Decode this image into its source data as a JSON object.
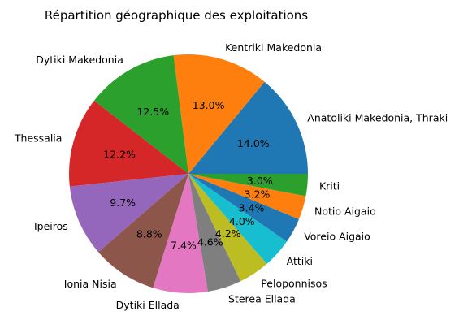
{
  "chart_data": {
    "type": "pie",
    "title": "Répartition géographique des exploitations",
    "start_angle_deg": 0,
    "direction": "counterclockwise",
    "labels": [
      "Anatoliki Makedonia, Thraki",
      "Kentriki Makedonia",
      "Dytiki Makedonia",
      "Thessalia",
      "Ipeiros",
      "Ionia Nisia",
      "Dytiki Ellada",
      "Sterea Ellada",
      "Peloponnisos",
      "Attiki",
      "Voreio Aigaio",
      "Notio Aigaio",
      "Kriti"
    ],
    "values": [
      14.0,
      13.0,
      12.5,
      12.2,
      9.7,
      8.8,
      7.4,
      4.6,
      4.2,
      4.0,
      3.4,
      3.2,
      3.0
    ],
    "value_labels": [
      "14.0%",
      "13.0%",
      "12.5%",
      "12.2%",
      "9.7%",
      "8.8%",
      "7.4%",
      "4.6%",
      "4.2%",
      "4.0%",
      "3.4%",
      "3.2%",
      "3.0%"
    ],
    "colors": [
      "#1f77b4",
      "#ff7f0e",
      "#2ca02c",
      "#d62728",
      "#9467bd",
      "#8c564b",
      "#e377c2",
      "#7f7f7f",
      "#bcbd22",
      "#17becf",
      "#1f77b4",
      "#ff7f0e",
      "#2ca02c"
    ]
  }
}
